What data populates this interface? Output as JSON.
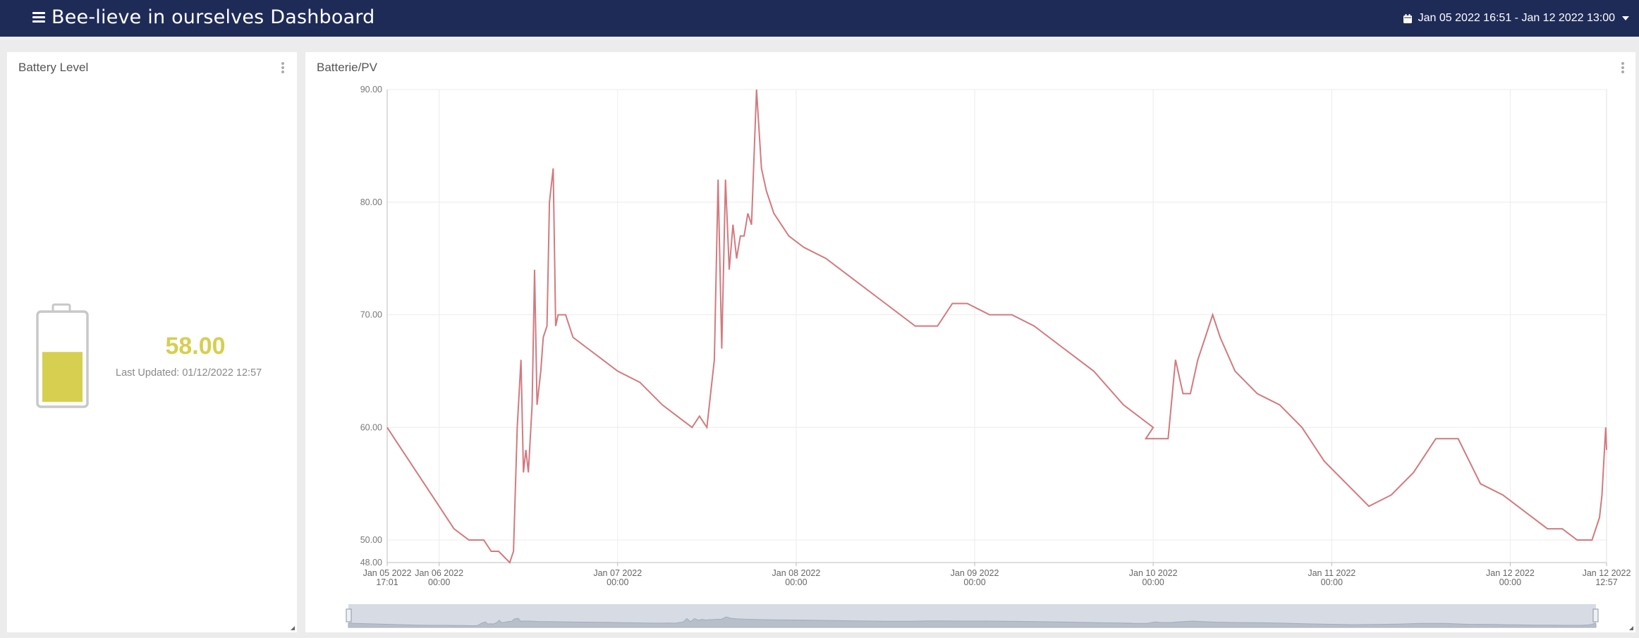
{
  "header": {
    "title": "Bee-lieve in ourselves Dashboard",
    "date_range": "Jan 05 2022 16:51 - Jan 12 2022 13:00",
    "background": "#1f2b57"
  },
  "battery_panel": {
    "title": "Battery Level",
    "value": "58.00",
    "last_updated": "Last Updated: 01/12/2022 12:57",
    "level_percent": 58,
    "value_color": "#d6cf50"
  },
  "chart_panel": {
    "title": "Batterie/PV"
  },
  "chart_data": {
    "type": "line",
    "title": "Batterie/PV",
    "xlabel": "",
    "ylabel": "",
    "ylim": [
      48,
      90
    ],
    "y_ticks": [
      "48.00",
      "50.00",
      "60.00",
      "70.00",
      "80.00",
      "90.00"
    ],
    "x_ticks": [
      {
        "date": "Jan 05 2022",
        "time": "17:01"
      },
      {
        "date": "Jan 06 2022",
        "time": "00:00"
      },
      {
        "date": "Jan 07 2022",
        "time": "00:00"
      },
      {
        "date": "Jan 08 2022",
        "time": "00:00"
      },
      {
        "date": "Jan 09 2022",
        "time": "00:00"
      },
      {
        "date": "Jan 10 2022",
        "time": "00:00"
      },
      {
        "date": "Jan 11 2022",
        "time": "00:00"
      },
      {
        "date": "Jan 12 2022",
        "time": "00:00"
      },
      {
        "date": "Jan 12 2022",
        "time": "12:57"
      }
    ],
    "grid": true,
    "line_color": "#d27a7f",
    "series": [
      {
        "points": [
          [
            "2022-01-05 17:01",
            60
          ],
          [
            "2022-01-05 18:00",
            59
          ],
          [
            "2022-01-05 20:00",
            57
          ],
          [
            "2022-01-05 22:00",
            55
          ],
          [
            "2022-01-06 00:00",
            53
          ],
          [
            "2022-01-06 02:00",
            51
          ],
          [
            "2022-01-06 04:00",
            50
          ],
          [
            "2022-01-06 06:00",
            50
          ],
          [
            "2022-01-06 07:00",
            49
          ],
          [
            "2022-01-06 08:00",
            49
          ],
          [
            "2022-01-06 09:30",
            48
          ],
          [
            "2022-01-06 10:00",
            49
          ],
          [
            "2022-01-06 10:30",
            60
          ],
          [
            "2022-01-06 11:00",
            66
          ],
          [
            "2022-01-06 11:20",
            56
          ],
          [
            "2022-01-06 11:40",
            58
          ],
          [
            "2022-01-06 12:00",
            56
          ],
          [
            "2022-01-06 12:30",
            62
          ],
          [
            "2022-01-06 12:50",
            74
          ],
          [
            "2022-01-06 13:10",
            62
          ],
          [
            "2022-01-06 13:40",
            65
          ],
          [
            "2022-01-06 14:00",
            68
          ],
          [
            "2022-01-06 14:30",
            69
          ],
          [
            "2022-01-06 14:50",
            80
          ],
          [
            "2022-01-06 15:20",
            83
          ],
          [
            "2022-01-06 15:40",
            69
          ],
          [
            "2022-01-06 16:00",
            70
          ],
          [
            "2022-01-06 17:00",
            70
          ],
          [
            "2022-01-06 18:00",
            68
          ],
          [
            "2022-01-06 20:00",
            67
          ],
          [
            "2022-01-06 22:00",
            66
          ],
          [
            "2022-01-07 00:00",
            65
          ],
          [
            "2022-01-07 03:00",
            64
          ],
          [
            "2022-01-07 06:00",
            62
          ],
          [
            "2022-01-07 08:00",
            61
          ],
          [
            "2022-01-07 10:00",
            60
          ],
          [
            "2022-01-07 11:00",
            61
          ],
          [
            "2022-01-07 12:00",
            60
          ],
          [
            "2022-01-07 13:00",
            66
          ],
          [
            "2022-01-07 13:30",
            82
          ],
          [
            "2022-01-07 14:00",
            67
          ],
          [
            "2022-01-07 14:30",
            82
          ],
          [
            "2022-01-07 15:00",
            74
          ],
          [
            "2022-01-07 15:30",
            78
          ],
          [
            "2022-01-07 16:00",
            75
          ],
          [
            "2022-01-07 16:30",
            77
          ],
          [
            "2022-01-07 17:00",
            77
          ],
          [
            "2022-01-07 17:30",
            79
          ],
          [
            "2022-01-07 18:00",
            78
          ],
          [
            "2022-01-07 18:40",
            90
          ],
          [
            "2022-01-07 19:20",
            83
          ],
          [
            "2022-01-07 20:00",
            81
          ],
          [
            "2022-01-07 21:00",
            79
          ],
          [
            "2022-01-07 23:00",
            77
          ],
          [
            "2022-01-08 01:00",
            76
          ],
          [
            "2022-01-08 04:00",
            75
          ],
          [
            "2022-01-08 08:00",
            73
          ],
          [
            "2022-01-08 12:00",
            71
          ],
          [
            "2022-01-08 14:00",
            70
          ],
          [
            "2022-01-08 16:00",
            69
          ],
          [
            "2022-01-08 19:00",
            69
          ],
          [
            "2022-01-08 21:00",
            71
          ],
          [
            "2022-01-08 23:00",
            71
          ],
          [
            "2022-01-09 02:00",
            70
          ],
          [
            "2022-01-09 05:00",
            70
          ],
          [
            "2022-01-09 08:00",
            69
          ],
          [
            "2022-01-09 12:00",
            67
          ],
          [
            "2022-01-09 16:00",
            65
          ],
          [
            "2022-01-09 20:00",
            62
          ],
          [
            "2022-01-10 00:00",
            60
          ],
          [
            "2022-01-09 23:00",
            59
          ],
          [
            "2022-01-10 02:00",
            59
          ],
          [
            "2022-01-10 03:00",
            66
          ],
          [
            "2022-01-10 04:00",
            63
          ],
          [
            "2022-01-10 05:00",
            63
          ],
          [
            "2022-01-10 06:00",
            66
          ],
          [
            "2022-01-10 07:00",
            68
          ],
          [
            "2022-01-10 08:00",
            70
          ],
          [
            "2022-01-10 09:00",
            68
          ],
          [
            "2022-01-10 11:00",
            65
          ],
          [
            "2022-01-10 14:00",
            63
          ],
          [
            "2022-01-10 17:00",
            62
          ],
          [
            "2022-01-10 20:00",
            60
          ],
          [
            "2022-01-10 23:00",
            57
          ],
          [
            "2022-01-11 02:00",
            55
          ],
          [
            "2022-01-11 05:00",
            53
          ],
          [
            "2022-01-11 08:00",
            54
          ],
          [
            "2022-01-11 11:00",
            56
          ],
          [
            "2022-01-11 14:00",
            59
          ],
          [
            "2022-01-11 17:00",
            59
          ],
          [
            "2022-01-11 20:00",
            55
          ],
          [
            "2022-01-11 23:00",
            54
          ],
          [
            "2022-01-12 01:00",
            53
          ],
          [
            "2022-01-12 03:00",
            52
          ],
          [
            "2022-01-12 05:00",
            51
          ],
          [
            "2022-01-12 07:00",
            51
          ],
          [
            "2022-01-12 09:00",
            50
          ],
          [
            "2022-01-12 11:00",
            50
          ],
          [
            "2022-01-12 12:00",
            52
          ],
          [
            "2022-01-12 12:20",
            54
          ],
          [
            "2022-01-12 12:40",
            58
          ],
          [
            "2022-01-12 12:50",
            60
          ],
          [
            "2022-01-12 12:57",
            58
          ]
        ]
      }
    ]
  }
}
